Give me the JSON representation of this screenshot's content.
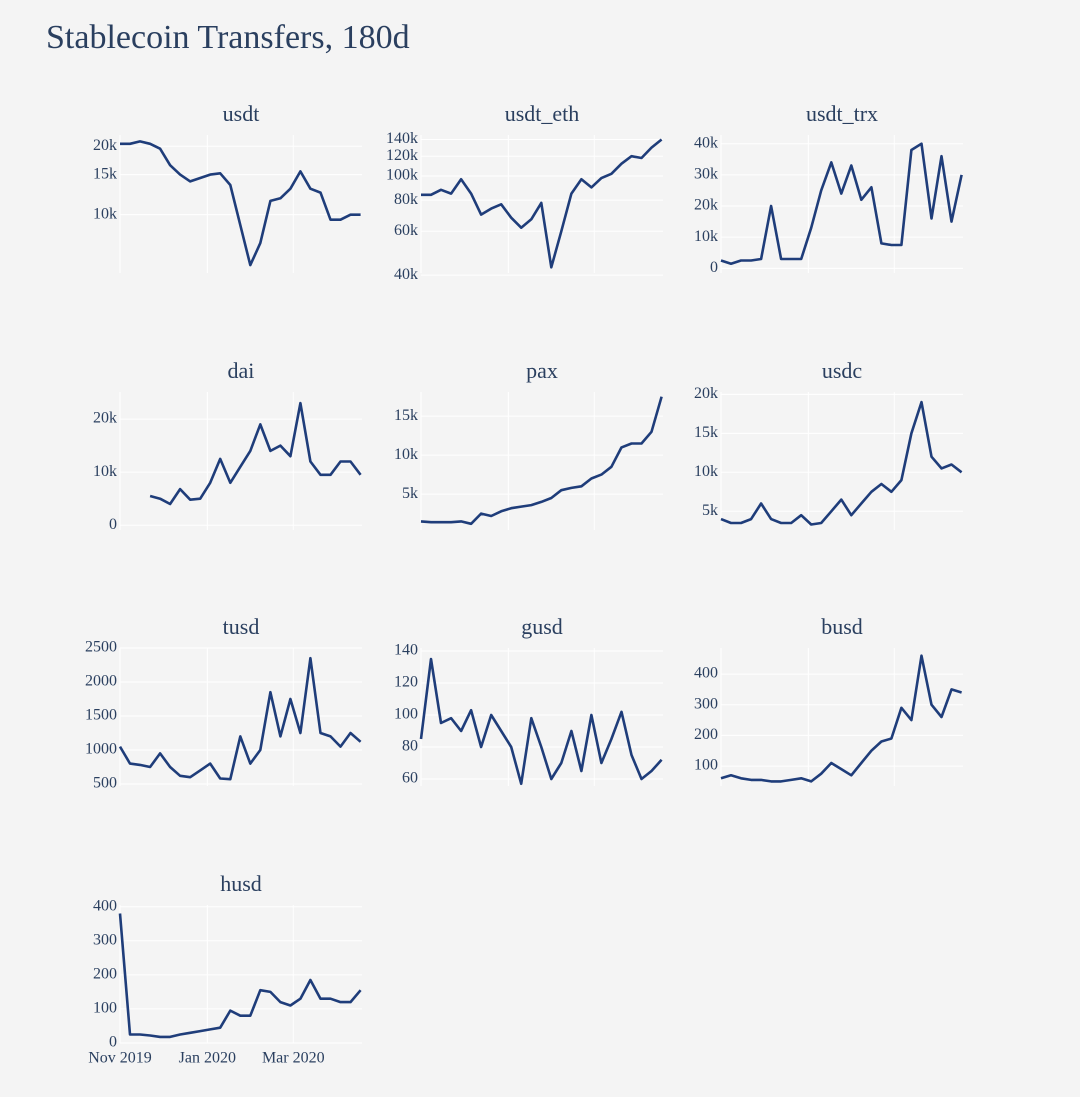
{
  "title": "Stablecoin Transfers, 180d",
  "chart_data": [
    {
      "type": "line",
      "title": "usdt",
      "log": true,
      "color": "#1f3d7a",
      "x": [
        "2019-11-01",
        "2019-11-08",
        "2019-11-15",
        "2019-11-22",
        "2019-11-29",
        "2019-12-06",
        "2019-12-13",
        "2019-12-20",
        "2019-12-27",
        "2020-01-03",
        "2020-01-10",
        "2020-01-17",
        "2020-01-24",
        "2020-01-31",
        "2020-02-07",
        "2020-02-14",
        "2020-02-21",
        "2020-02-28",
        "2020-03-06",
        "2020-03-13",
        "2020-03-20",
        "2020-03-27",
        "2020-04-03",
        "2020-04-10",
        "2020-04-17"
      ],
      "values": [
        20500,
        20500,
        21000,
        20500,
        19500,
        16500,
        15000,
        14000,
        14500,
        15000,
        15200,
        13500,
        9000,
        6000,
        7500,
        11500,
        11800,
        13000,
        15500,
        13000,
        12500,
        9500,
        9500,
        10000,
        10000
      ],
      "xlim": [
        "2019-11-01",
        "2020-04-18"
      ],
      "ylim": [
        5540,
        22400
      ],
      "yticks": [
        {
          "value": 10000,
          "label": "10k"
        },
        {
          "value": 15000,
          "label": "15k"
        },
        {
          "value": 20000,
          "label": "20k"
        }
      ]
    },
    {
      "type": "line",
      "title": "usdt_eth",
      "log": true,
      "color": "#1f3d7a",
      "x": [
        "2019-11-01",
        "2019-11-08",
        "2019-11-15",
        "2019-11-22",
        "2019-11-29",
        "2019-12-06",
        "2019-12-13",
        "2019-12-20",
        "2019-12-27",
        "2020-01-03",
        "2020-01-10",
        "2020-01-17",
        "2020-01-24",
        "2020-01-31",
        "2020-02-07",
        "2020-02-14",
        "2020-02-21",
        "2020-02-28",
        "2020-03-06",
        "2020-03-13",
        "2020-03-20",
        "2020-03-27",
        "2020-04-03",
        "2020-04-10",
        "2020-04-17"
      ],
      "values": [
        84000,
        84000,
        88000,
        85000,
        97000,
        85000,
        70000,
        74000,
        77000,
        68000,
        62000,
        67000,
        78000,
        43000,
        60000,
        85000,
        97000,
        90000,
        98000,
        102000,
        112000,
        120000,
        118000,
        130000,
        140000
      ],
      "xlim": [
        "2019-11-01",
        "2020-04-18"
      ],
      "ylim": [
        40800,
        146000
      ],
      "yticks": [
        {
          "value": 40000,
          "label": "40k"
        },
        {
          "value": 60000,
          "label": "60k"
        },
        {
          "value": 80000,
          "label": "80k"
        },
        {
          "value": 100000,
          "label": "100k"
        },
        {
          "value": 120000,
          "label": "120k"
        },
        {
          "value": 140000,
          "label": "140k"
        }
      ]
    },
    {
      "type": "line",
      "title": "usdt_trx",
      "color": "#1f3d7a",
      "x": [
        "2019-11-01",
        "2019-11-08",
        "2019-11-15",
        "2019-11-22",
        "2019-11-29",
        "2019-12-06",
        "2019-12-13",
        "2019-12-20",
        "2019-12-27",
        "2020-01-03",
        "2020-01-10",
        "2020-01-17",
        "2020-01-24",
        "2020-01-31",
        "2020-02-07",
        "2020-02-14",
        "2020-02-21",
        "2020-02-28",
        "2020-03-06",
        "2020-03-13",
        "2020-03-20",
        "2020-03-27",
        "2020-04-03",
        "2020-04-10",
        "2020-04-17"
      ],
      "values": [
        2500,
        1500,
        2500,
        2500,
        3000,
        20000,
        3000,
        3000,
        3000,
        13000,
        25000,
        34000,
        24000,
        33000,
        22000,
        26000,
        8000,
        7500,
        7500,
        38000,
        40000,
        16000,
        36000,
        15000,
        30000
      ],
      "xlim": [
        "2019-11-01",
        "2020-04-18"
      ],
      "ylim": [
        -1500,
        42800
      ],
      "yticks": [
        0,
        {
          "value": 10000,
          "label": "10k"
        },
        {
          "value": 20000,
          "label": "20k"
        },
        {
          "value": 30000,
          "label": "30k"
        },
        {
          "value": 40000,
          "label": "40k"
        }
      ]
    },
    {
      "type": "line",
      "title": "dai",
      "color": "#1f3d7a",
      "x": [
        "2019-11-01",
        "2019-11-08",
        "2019-11-15",
        "2019-11-22",
        "2019-11-29",
        "2019-12-06",
        "2019-12-13",
        "2019-12-20",
        "2019-12-27",
        "2020-01-03",
        "2020-01-10",
        "2020-01-17",
        "2020-01-24",
        "2020-01-31",
        "2020-02-07",
        "2020-02-14",
        "2020-02-21",
        "2020-02-28",
        "2020-03-06",
        "2020-03-13",
        "2020-03-20",
        "2020-03-27",
        "2020-04-03",
        "2020-04-10",
        "2020-04-17"
      ],
      "values": [
        null,
        null,
        null,
        5500,
        5000,
        4000,
        6800,
        4800,
        5000,
        8000,
        12500,
        8000,
        11000,
        14000,
        19000,
        14000,
        15000,
        13000,
        23000,
        12000,
        9500,
        9500,
        12000,
        12000,
        9500
      ],
      "xlim": [
        "2019-11-01",
        "2020-04-18"
      ],
      "ylim": [
        -900,
        25100
      ],
      "yticks": [
        0,
        {
          "value": 10000,
          "label": "10k"
        },
        {
          "value": 20000,
          "label": "20k"
        }
      ]
    },
    {
      "type": "line",
      "title": "pax",
      "color": "#1f3d7a",
      "x": [
        "2019-11-01",
        "2019-11-08",
        "2019-11-15",
        "2019-11-22",
        "2019-11-29",
        "2019-12-06",
        "2019-12-13",
        "2019-12-20",
        "2019-12-27",
        "2020-01-03",
        "2020-01-10",
        "2020-01-17",
        "2020-01-24",
        "2020-01-31",
        "2020-02-07",
        "2020-02-14",
        "2020-02-21",
        "2020-02-28",
        "2020-03-06",
        "2020-03-13",
        "2020-03-20",
        "2020-03-27",
        "2020-04-03",
        "2020-04-10",
        "2020-04-17"
      ],
      "values": [
        1500,
        1400,
        1400,
        1400,
        1500,
        1200,
        2500,
        2200,
        2800,
        3200,
        3400,
        3600,
        4000,
        4500,
        5500,
        5800,
        6000,
        7000,
        7500,
        8500,
        11000,
        11500,
        11500,
        13000,
        17500
      ],
      "xlim": [
        "2019-11-01",
        "2020-04-18"
      ],
      "ylim": [
        400,
        18100
      ],
      "yticks": [
        {
          "value": 5000,
          "label": "5k"
        },
        {
          "value": 10000,
          "label": "10k"
        },
        {
          "value": 15000,
          "label": "15k"
        }
      ]
    },
    {
      "type": "line",
      "title": "usdc",
      "color": "#1f3d7a",
      "x": [
        "2019-11-01",
        "2019-11-08",
        "2019-11-15",
        "2019-11-22",
        "2019-11-29",
        "2019-12-06",
        "2019-12-13",
        "2019-12-20",
        "2019-12-27",
        "2020-01-03",
        "2020-01-10",
        "2020-01-17",
        "2020-01-24",
        "2020-01-31",
        "2020-02-07",
        "2020-02-14",
        "2020-02-21",
        "2020-02-28",
        "2020-03-06",
        "2020-03-13",
        "2020-03-20",
        "2020-03-27",
        "2020-04-03",
        "2020-04-10",
        "2020-04-17"
      ],
      "values": [
        4000,
        3500,
        3500,
        4000,
        6000,
        4000,
        3500,
        3500,
        4500,
        3300,
        3500,
        5000,
        6500,
        4500,
        6000,
        7500,
        8500,
        7500,
        9000,
        15000,
        19000,
        12000,
        10500,
        11000,
        10000
      ],
      "xlim": [
        "2019-11-01",
        "2020-04-18"
      ],
      "ylim": [
        2600,
        20300
      ],
      "yticks": [
        {
          "value": 5000,
          "label": "5k"
        },
        {
          "value": 10000,
          "label": "10k"
        },
        {
          "value": 15000,
          "label": "15k"
        },
        {
          "value": 20000,
          "label": "20k"
        }
      ]
    },
    {
      "type": "line",
      "title": "tusd",
      "color": "#1f3d7a",
      "x": [
        "2019-11-01",
        "2019-11-08",
        "2019-11-15",
        "2019-11-22",
        "2019-11-29",
        "2019-12-06",
        "2019-12-13",
        "2019-12-20",
        "2019-12-27",
        "2020-01-03",
        "2020-01-10",
        "2020-01-17",
        "2020-01-24",
        "2020-01-31",
        "2020-02-07",
        "2020-02-14",
        "2020-02-21",
        "2020-02-28",
        "2020-03-06",
        "2020-03-13",
        "2020-03-20",
        "2020-03-27",
        "2020-04-03",
        "2020-04-10",
        "2020-04-17"
      ],
      "values": [
        1050,
        800,
        780,
        750,
        950,
        750,
        620,
        600,
        700,
        800,
        580,
        570,
        1200,
        800,
        1000,
        1850,
        1200,
        1750,
        1250,
        2350,
        1250,
        1200,
        1050,
        1250,
        1120
      ],
      "xlim": [
        "2019-11-01",
        "2020-04-18"
      ],
      "ylim": [
        470,
        2500
      ],
      "yticks": [
        500,
        1000,
        1500,
        2000,
        2500
      ]
    },
    {
      "type": "line",
      "title": "gusd",
      "color": "#1f3d7a",
      "x": [
        "2019-11-01",
        "2019-11-08",
        "2019-11-15",
        "2019-11-22",
        "2019-11-29",
        "2019-12-06",
        "2019-12-13",
        "2019-12-20",
        "2019-12-27",
        "2020-01-03",
        "2020-01-10",
        "2020-01-17",
        "2020-01-24",
        "2020-01-31",
        "2020-02-07",
        "2020-02-14",
        "2020-02-21",
        "2020-02-28",
        "2020-03-06",
        "2020-03-13",
        "2020-03-20",
        "2020-03-27",
        "2020-04-03",
        "2020-04-10",
        "2020-04-17"
      ],
      "values": [
        85,
        135,
        95,
        98,
        90,
        103,
        80,
        100,
        90,
        80,
        57,
        98,
        80,
        60,
        70,
        90,
        65,
        100,
        70,
        85,
        102,
        75,
        60,
        65,
        72
      ],
      "xlim": [
        "2019-11-01",
        "2020-04-18"
      ],
      "ylim": [
        55.6,
        141.9
      ],
      "yticks": [
        60,
        80,
        100,
        120,
        140
      ]
    },
    {
      "type": "line",
      "title": "busd",
      "color": "#1f3d7a",
      "x": [
        "2019-11-01",
        "2019-11-08",
        "2019-11-15",
        "2019-11-22",
        "2019-11-29",
        "2019-12-06",
        "2019-12-13",
        "2019-12-20",
        "2019-12-27",
        "2020-01-03",
        "2020-01-10",
        "2020-01-17",
        "2020-01-24",
        "2020-01-31",
        "2020-02-07",
        "2020-02-14",
        "2020-02-21",
        "2020-02-28",
        "2020-03-06",
        "2020-03-13",
        "2020-03-20",
        "2020-03-27",
        "2020-04-03",
        "2020-04-10",
        "2020-04-17"
      ],
      "values": [
        60,
        70,
        60,
        55,
        55,
        50,
        50,
        55,
        60,
        50,
        75,
        110,
        90,
        70,
        110,
        150,
        180,
        190,
        290,
        250,
        460,
        300,
        260,
        350,
        340
      ],
      "xlim": [
        "2019-11-01",
        "2020-04-18"
      ],
      "ylim": [
        35,
        485
      ],
      "yticks": [
        100,
        200,
        300,
        400
      ]
    },
    {
      "type": "line",
      "title": "husd",
      "color": "#1f3d7a",
      "x": [
        "2019-11-01",
        "2019-11-08",
        "2019-11-15",
        "2019-11-22",
        "2019-11-29",
        "2019-12-06",
        "2019-12-13",
        "2019-12-20",
        "2019-12-27",
        "2020-01-03",
        "2020-01-10",
        "2020-01-17",
        "2020-01-24",
        "2020-01-31",
        "2020-02-07",
        "2020-02-14",
        "2020-02-21",
        "2020-02-28",
        "2020-03-06",
        "2020-03-13",
        "2020-03-20",
        "2020-03-27",
        "2020-04-03",
        "2020-04-10",
        "2020-04-17"
      ],
      "values": [
        380,
        25,
        25,
        22,
        18,
        18,
        25,
        30,
        35,
        40,
        45,
        95,
        80,
        80,
        155,
        150,
        120,
        110,
        130,
        185,
        130,
        130,
        120,
        120,
        155
      ],
      "xlim": [
        "2019-11-01",
        "2020-04-18"
      ],
      "ylim": [
        0,
        405
      ],
      "xticks": [
        {
          "value": "2019-11-01",
          "label": "Nov 2019"
        },
        {
          "value": "2020-01-01",
          "label": "Jan 2020"
        },
        {
          "value": "2020-03-01",
          "label": "Mar 2020"
        }
      ],
      "yticks": [
        0,
        100,
        200,
        300,
        400
      ]
    }
  ]
}
